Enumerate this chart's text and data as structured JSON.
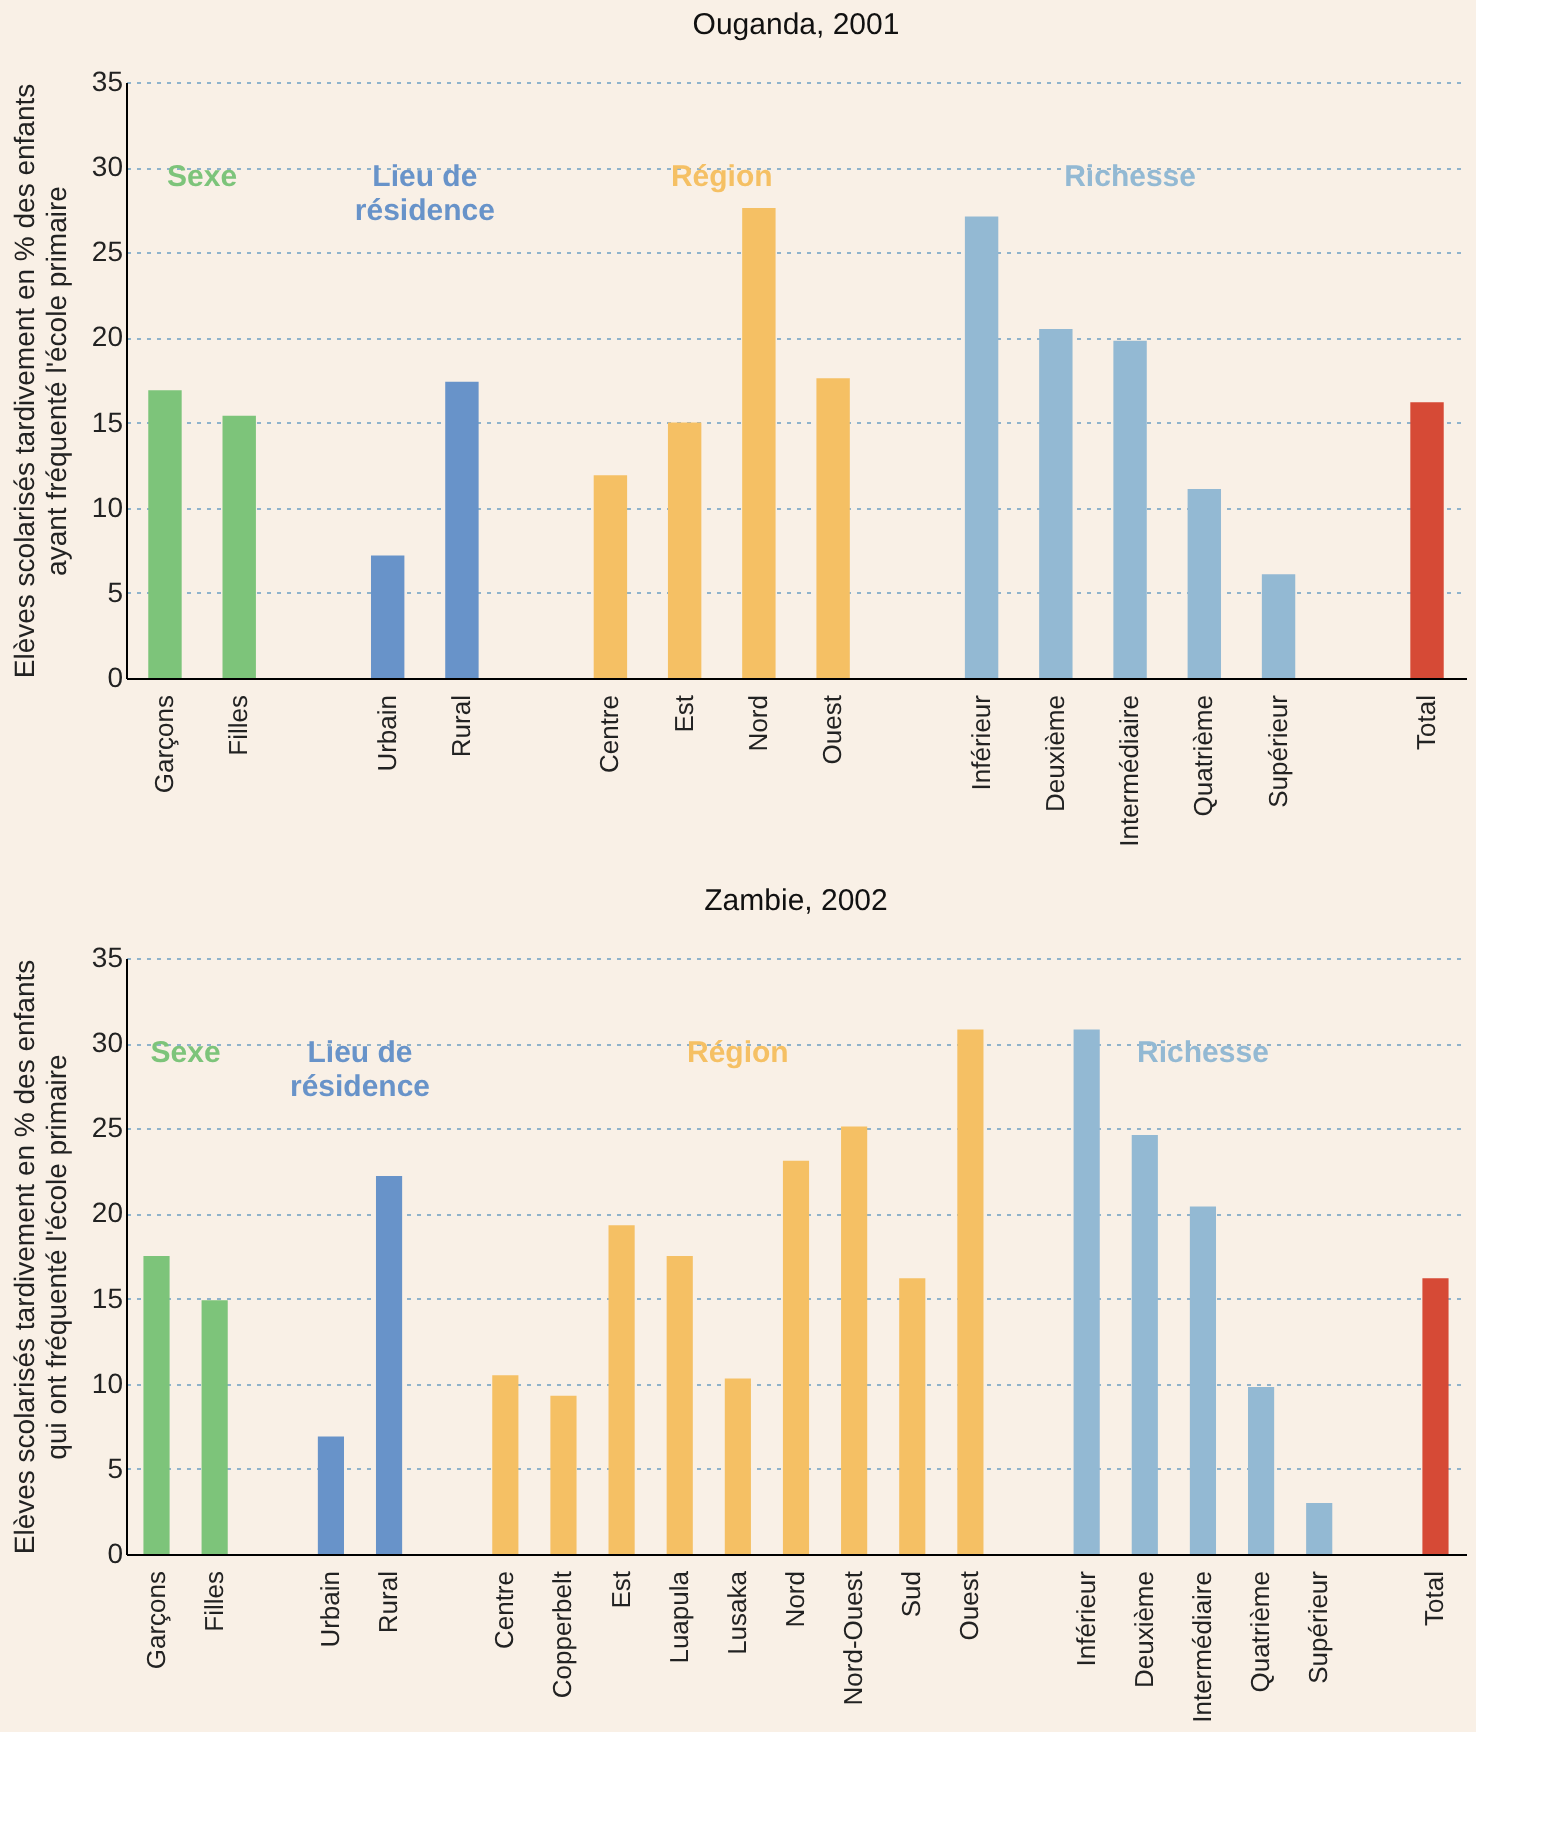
{
  "chart_data": [
    {
      "type": "bar",
      "title": "Ouganda, 2001",
      "ylabel": "Elèves scolarisés tardivement en % des enfants\nayant fréquenté l'école primaire",
      "categories": [
        "Garçons",
        "Filles",
        null,
        "Urbain",
        "Rural",
        null,
        "Centre",
        "Est",
        "Nord",
        "Ouest",
        null,
        "Inférieur",
        "Deuxième",
        "Intermédiaire",
        "Quatrième",
        "Supérieur",
        null,
        "Total"
      ],
      "values": [
        16.9,
        15.4,
        null,
        7.2,
        17.4,
        null,
        11.9,
        15.0,
        27.6,
        17.6,
        null,
        27.1,
        20.5,
        19.8,
        11.1,
        6.1,
        null,
        16.2
      ],
      "colors": [
        "#7dc47a",
        "#7dc47a",
        null,
        "#6893c9",
        "#6893c9",
        null,
        "#f5c064",
        "#f5c064",
        "#f5c064",
        "#f5c064",
        null,
        "#93b9d3",
        "#93b9d3",
        "#93b9d3",
        "#93b9d3",
        "#93b9d3",
        null,
        "#d64a36"
      ],
      "annotations": [
        "Sexe",
        "Lieu de\nrésidence",
        "Région",
        "Richesse"
      ],
      "ylim": [
        0,
        35
      ],
      "yticks": [
        0,
        5,
        10,
        15,
        20,
        25,
        30,
        35
      ],
      "grid": "y"
    },
    {
      "type": "bar",
      "title": "Zambie, 2002",
      "ylabel": "Elèves scolarisés tardivement en % des enfants\nqui ont fréquenté l'école primaire",
      "categories": [
        "Garçons",
        "Filles",
        null,
        "Urbain",
        "Rural",
        null,
        "Centre",
        "Copperbelt",
        "Est",
        "Luapula",
        "Lusaka",
        "Nord",
        "Nord-Ouest",
        "Sud",
        "Ouest",
        null,
        "Inférieur",
        "Deuxième",
        "Intermédiaire",
        "Quatrième",
        "Supérieur",
        null,
        "Total"
      ],
      "values": [
        17.5,
        14.9,
        null,
        6.9,
        22.2,
        null,
        10.5,
        9.3,
        19.3,
        17.5,
        10.3,
        23.1,
        25.1,
        16.2,
        30.8,
        null,
        30.8,
        24.6,
        20.4,
        9.8,
        3.0,
        null,
        16.2
      ],
      "colors": [
        "#7dc47a",
        "#7dc47a",
        null,
        "#6893c9",
        "#6893c9",
        null,
        "#f5c064",
        "#f5c064",
        "#f5c064",
        "#f5c064",
        "#f5c064",
        "#f5c064",
        "#f5c064",
        "#f5c064",
        "#f5c064",
        null,
        "#93b9d3",
        "#93b9d3",
        "#93b9d3",
        "#93b9d3",
        "#93b9d3",
        null,
        "#d64a36"
      ],
      "annotations": [
        "Sexe",
        "Lieu de\nrésidence",
        "Région",
        "Richesse"
      ],
      "ylim": [
        0,
        35
      ],
      "yticks": [
        0,
        5,
        10,
        15,
        20,
        25,
        30,
        35
      ],
      "grid": "y"
    }
  ]
}
